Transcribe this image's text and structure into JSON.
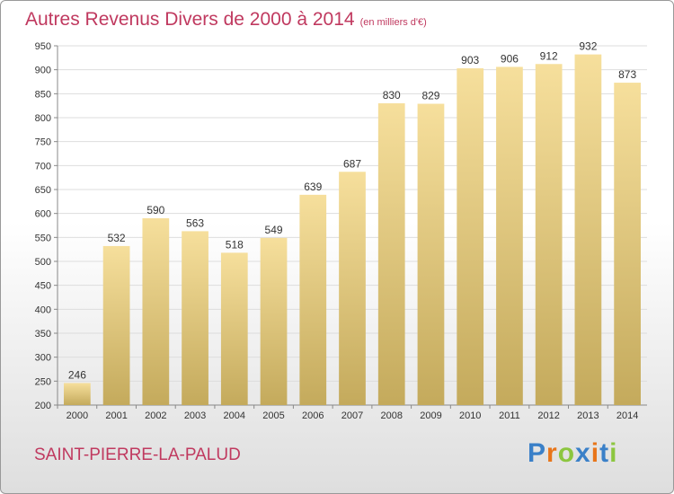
{
  "chart_data": {
    "type": "bar",
    "title": "Autres Revenus Divers de 2000 à 2014",
    "subtitle": "(en milliers d'€)",
    "categories": [
      "2000",
      "2001",
      "2002",
      "2003",
      "2004",
      "2005",
      "2006",
      "2007",
      "2008",
      "2009",
      "2010",
      "2011",
      "2012",
      "2013",
      "2014"
    ],
    "values": [
      246,
      532,
      590,
      563,
      518,
      549,
      639,
      687,
      830,
      829,
      903,
      906,
      912,
      932,
      873
    ],
    "ylim": [
      200,
      950
    ],
    "yticks": [
      200,
      250,
      300,
      350,
      400,
      450,
      500,
      550,
      600,
      650,
      700,
      750,
      800,
      850,
      900,
      950
    ],
    "grid": true,
    "bar_color_top": "#f6df9c",
    "bar_color_bottom": "#c4aa5c"
  },
  "location": "SAINT-PIERRE-LA-PALUD",
  "brand": {
    "letters": [
      "P",
      "r",
      "o",
      "x",
      "i",
      "t",
      "i"
    ],
    "colors": [
      "#3a80c8",
      "#e8751a",
      "#8cc63f",
      "#3a80c8",
      "#e8751a",
      "#3a80c8",
      "#8cc63f"
    ]
  },
  "colors": {
    "title": "#c0395f",
    "grid": "#dddddd",
    "axis": "#888888"
  }
}
